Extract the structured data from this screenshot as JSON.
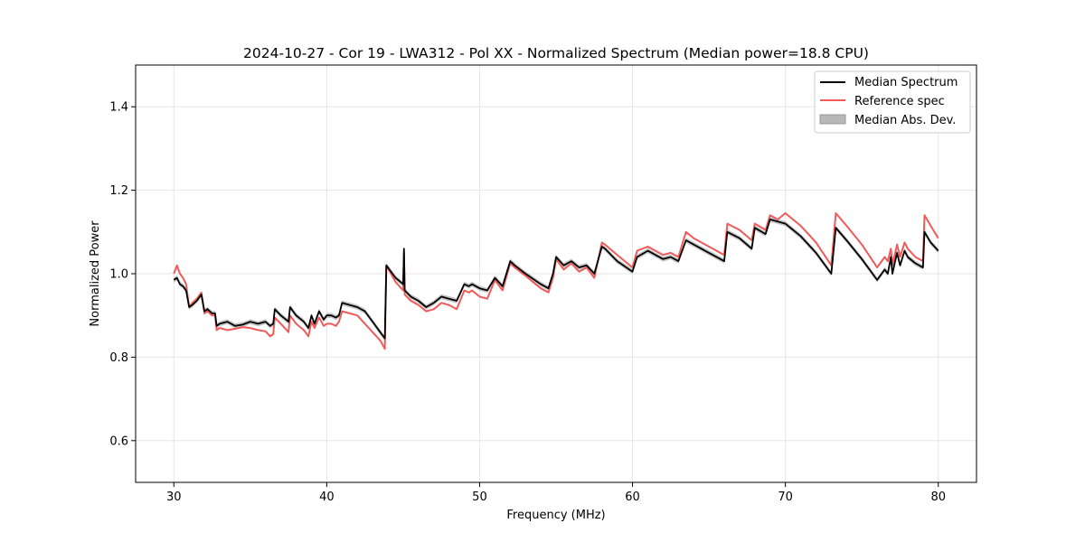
{
  "chart_data": {
    "type": "line",
    "title": "2024-10-27 - Cor 19 - LWA312 - Pol XX - Normalized Spectrum (Median power=18.8 CPU)",
    "xlabel": "Frequency (MHz)",
    "ylabel": "Normalized Power",
    "xlim": [
      27.5,
      82.5
    ],
    "ylim": [
      0.5,
      1.5
    ],
    "xticks": [
      30,
      40,
      50,
      60,
      70,
      80
    ],
    "yticks": [
      0.6,
      0.8,
      1.0,
      1.2,
      1.4
    ],
    "grid": true,
    "legend_position": "top-right",
    "legend": [
      "Median Spectrum",
      "Reference spec",
      "Median Abs. Dev."
    ],
    "colors": {
      "median": "#000000",
      "reference": "#f05a5a",
      "mad_fill": "#b8b8b8",
      "grid": "#e6e6e6"
    },
    "mad_halfwidth": 0.006,
    "series": [
      {
        "name": "Median Spectrum",
        "x": [
          30.0,
          30.2,
          30.4,
          30.6,
          30.8,
          31.0,
          31.2,
          31.5,
          31.8,
          32.0,
          32.2,
          32.5,
          32.7,
          32.8,
          33.0,
          33.5,
          34.0,
          34.5,
          35.0,
          35.5,
          36.0,
          36.3,
          36.5,
          36.6,
          37.0,
          37.5,
          37.6,
          38.0,
          38.5,
          38.8,
          39.0,
          39.2,
          39.5,
          39.8,
          40.0,
          40.3,
          40.6,
          40.8,
          41.0,
          41.5,
          42.0,
          42.5,
          43.0,
          43.5,
          43.8,
          43.9,
          44.5,
          45.0,
          45.05,
          45.1,
          45.5,
          46.0,
          46.5,
          47.0,
          47.5,
          48.0,
          48.5,
          49.0,
          49.3,
          49.5,
          50.0,
          50.5,
          51.0,
          51.5,
          52.0,
          52.3,
          53.0,
          54.0,
          54.5,
          54.8,
          55.0,
          55.5,
          56.0,
          56.5,
          57.0,
          57.5,
          58.0,
          58.2,
          59.0,
          60.0,
          60.3,
          61.0,
          62.0,
          62.5,
          63.0,
          63.5,
          64.0,
          65.0,
          66.0,
          66.2,
          67.0,
          67.8,
          68.0,
          68.7,
          69.0,
          69.5,
          70.0,
          71.0,
          72.0,
          73.0,
          73.3,
          74.0,
          75.0,
          76.0,
          76.5,
          76.7,
          76.9,
          77.0,
          77.3,
          77.5,
          77.8,
          78.0,
          78.5,
          79.0,
          79.1,
          79.5,
          80.0
        ],
        "values": [
          0.985,
          0.99,
          0.975,
          0.97,
          0.96,
          0.92,
          0.925,
          0.935,
          0.95,
          0.91,
          0.915,
          0.905,
          0.905,
          0.875,
          0.88,
          0.885,
          0.875,
          0.878,
          0.885,
          0.88,
          0.885,
          0.875,
          0.88,
          0.915,
          0.9,
          0.885,
          0.92,
          0.9,
          0.885,
          0.87,
          0.9,
          0.88,
          0.91,
          0.89,
          0.9,
          0.9,
          0.895,
          0.9,
          0.93,
          0.925,
          0.92,
          0.91,
          0.885,
          0.86,
          0.845,
          1.02,
          0.99,
          0.975,
          1.06,
          0.96,
          0.945,
          0.935,
          0.92,
          0.93,
          0.945,
          0.94,
          0.935,
          0.975,
          0.97,
          0.975,
          0.965,
          0.96,
          0.99,
          0.97,
          1.03,
          1.02,
          1.0,
          0.975,
          0.965,
          1.0,
          1.04,
          1.02,
          1.03,
          1.015,
          1.02,
          1.0,
          1.065,
          1.06,
          1.03,
          1.005,
          1.04,
          1.055,
          1.035,
          1.04,
          1.03,
          1.08,
          1.07,
          1.05,
          1.03,
          1.1,
          1.085,
          1.06,
          1.11,
          1.095,
          1.13,
          1.125,
          1.12,
          1.09,
          1.05,
          1.0,
          1.11,
          1.08,
          1.035,
          0.985,
          1.01,
          1.0,
          1.04,
          1.0,
          1.05,
          1.02,
          1.055,
          1.04,
          1.025,
          1.015,
          1.1,
          1.075,
          1.055
        ]
      },
      {
        "name": "Reference spec",
        "x": [
          30.0,
          30.2,
          30.4,
          30.6,
          30.8,
          31.0,
          31.2,
          31.5,
          31.8,
          32.0,
          32.2,
          32.5,
          32.7,
          32.8,
          33.0,
          33.5,
          34.0,
          34.5,
          35.0,
          35.5,
          36.0,
          36.3,
          36.5,
          36.6,
          37.0,
          37.5,
          37.6,
          38.0,
          38.5,
          38.8,
          39.0,
          39.2,
          39.5,
          39.8,
          40.0,
          40.3,
          40.6,
          40.8,
          41.0,
          41.5,
          42.0,
          42.5,
          43.0,
          43.5,
          43.8,
          43.9,
          44.5,
          45.0,
          45.05,
          45.1,
          45.5,
          46.0,
          46.5,
          47.0,
          47.5,
          48.0,
          48.5,
          49.0,
          49.3,
          49.5,
          50.0,
          50.5,
          51.0,
          51.5,
          52.0,
          52.3,
          53.0,
          54.0,
          54.5,
          54.8,
          55.0,
          55.5,
          56.0,
          56.5,
          57.0,
          57.5,
          58.0,
          58.2,
          59.0,
          60.0,
          60.3,
          61.0,
          62.0,
          62.5,
          63.0,
          63.5,
          64.0,
          65.0,
          66.0,
          66.2,
          67.0,
          67.8,
          68.0,
          68.7,
          69.0,
          69.5,
          70.0,
          71.0,
          72.0,
          73.0,
          73.3,
          74.0,
          75.0,
          76.0,
          76.5,
          76.7,
          76.9,
          77.0,
          77.3,
          77.5,
          77.8,
          78.0,
          78.5,
          79.0,
          79.1,
          79.5,
          80.0
        ],
        "values": [
          1.0,
          1.02,
          1.0,
          0.99,
          0.975,
          0.92,
          0.93,
          0.94,
          0.955,
          0.905,
          0.91,
          0.9,
          0.9,
          0.865,
          0.87,
          0.865,
          0.868,
          0.872,
          0.87,
          0.865,
          0.862,
          0.85,
          0.855,
          0.895,
          0.88,
          0.86,
          0.9,
          0.88,
          0.865,
          0.85,
          0.885,
          0.87,
          0.895,
          0.875,
          0.88,
          0.88,
          0.875,
          0.885,
          0.91,
          0.905,
          0.9,
          0.88,
          0.86,
          0.84,
          0.82,
          1.02,
          0.98,
          0.96,
          1.05,
          0.95,
          0.935,
          0.925,
          0.91,
          0.915,
          0.93,
          0.925,
          0.915,
          0.96,
          0.955,
          0.96,
          0.945,
          0.94,
          0.985,
          0.96,
          1.025,
          1.015,
          0.995,
          0.965,
          0.955,
          0.99,
          1.035,
          1.01,
          1.025,
          1.005,
          1.015,
          0.99,
          1.075,
          1.07,
          1.045,
          1.015,
          1.055,
          1.065,
          1.045,
          1.05,
          1.04,
          1.1,
          1.085,
          1.065,
          1.045,
          1.12,
          1.105,
          1.08,
          1.12,
          1.105,
          1.14,
          1.13,
          1.145,
          1.115,
          1.075,
          1.02,
          1.145,
          1.115,
          1.07,
          1.015,
          1.04,
          1.03,
          1.06,
          1.02,
          1.07,
          1.04,
          1.075,
          1.06,
          1.04,
          1.03,
          1.14,
          1.115,
          1.085
        ]
      }
    ]
  }
}
